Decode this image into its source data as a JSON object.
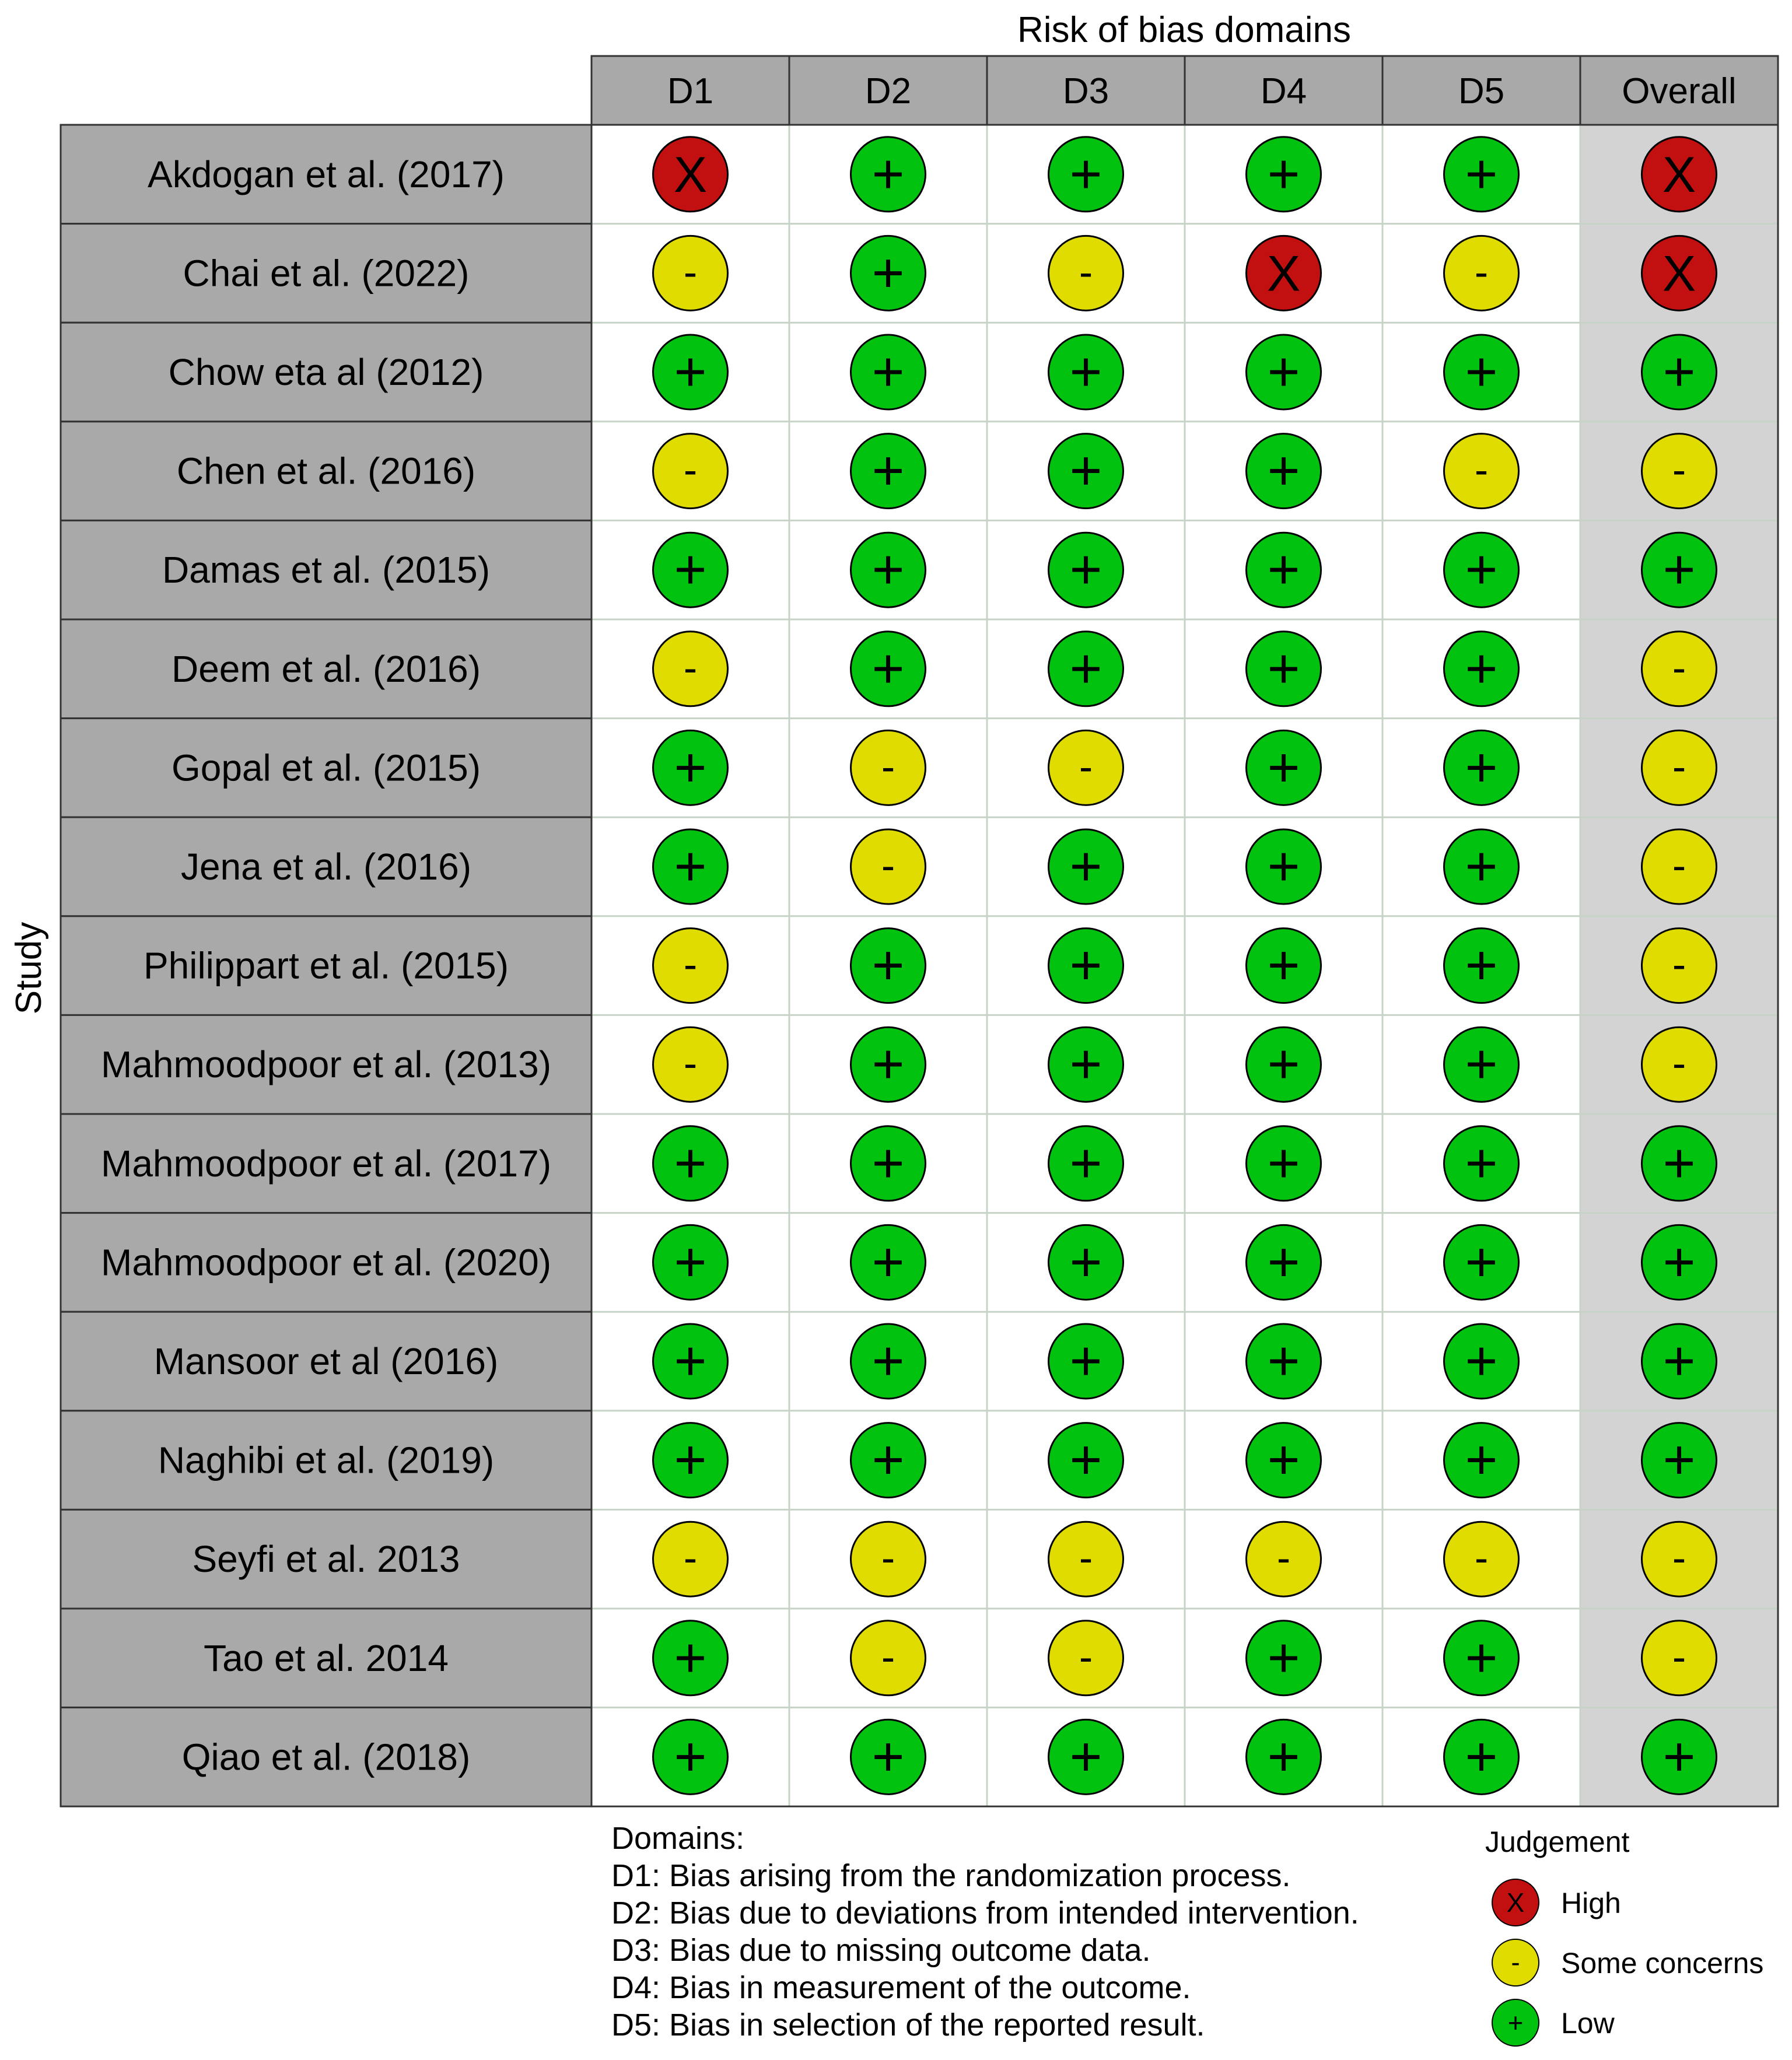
{
  "chart_data": {
    "type": "table",
    "title": "Risk of bias domains",
    "y_axis_label": "Study",
    "domains": [
      "D1",
      "D2",
      "D3",
      "D4",
      "D5",
      "Overall"
    ],
    "studies": [
      {
        "name": "Akdogan et al. (2017)",
        "judgements": [
          "high",
          "low",
          "low",
          "low",
          "low",
          "high"
        ]
      },
      {
        "name": "Chai et al. (2022)",
        "judgements": [
          "some",
          "low",
          "some",
          "high",
          "some",
          "high"
        ]
      },
      {
        "name": "Chow eta al (2012)",
        "judgements": [
          "low",
          "low",
          "low",
          "low",
          "low",
          "low"
        ]
      },
      {
        "name": "Chen et al. (2016)",
        "judgements": [
          "some",
          "low",
          "low",
          "low",
          "some",
          "some"
        ]
      },
      {
        "name": "Damas et al. (2015)",
        "judgements": [
          "low",
          "low",
          "low",
          "low",
          "low",
          "low"
        ]
      },
      {
        "name": "Deem et al. (2016)",
        "judgements": [
          "some",
          "low",
          "low",
          "low",
          "low",
          "some"
        ]
      },
      {
        "name": "Gopal et al. (2015)",
        "judgements": [
          "low",
          "some",
          "some",
          "low",
          "low",
          "some"
        ]
      },
      {
        "name": "Jena et al. (2016)",
        "judgements": [
          "low",
          "some",
          "low",
          "low",
          "low",
          "some"
        ]
      },
      {
        "name": "Philippart et al. (2015)",
        "judgements": [
          "some",
          "low",
          "low",
          "low",
          "low",
          "some"
        ]
      },
      {
        "name": "Mahmoodpoor et al. (2013)",
        "judgements": [
          "some",
          "low",
          "low",
          "low",
          "low",
          "some"
        ]
      },
      {
        "name": "Mahmoodpoor et al. (2017)",
        "judgements": [
          "low",
          "low",
          "low",
          "low",
          "low",
          "low"
        ]
      },
      {
        "name": "Mahmoodpoor et al. (2020)",
        "judgements": [
          "low",
          "low",
          "low",
          "low",
          "low",
          "low"
        ]
      },
      {
        "name": "Mansoor et al (2016)",
        "judgements": [
          "low",
          "low",
          "low",
          "low",
          "low",
          "low"
        ]
      },
      {
        "name": "Naghibi et al. (2019)",
        "judgements": [
          "low",
          "low",
          "low",
          "low",
          "low",
          "low"
        ]
      },
      {
        "name": "Seyfi et al. 2013",
        "judgements": [
          "some",
          "some",
          "some",
          "some",
          "some",
          "some"
        ]
      },
      {
        "name": "Tao et al. 2014",
        "judgements": [
          "low",
          "some",
          "some",
          "low",
          "low",
          "some"
        ]
      },
      {
        "name": "Qiao et al. (2018)",
        "judgements": [
          "low",
          "low",
          "low",
          "low",
          "low",
          "low"
        ]
      }
    ],
    "domain_legend": {
      "heading": "Domains:",
      "items": [
        "D1: Bias arising from the randomization process.",
        "D2: Bias due to deviations from intended intervention.",
        "D3: Bias due to missing outcome data.",
        "D4: Bias in measurement of the outcome.",
        "D5: Bias in selection of the reported result."
      ]
    },
    "judgement_legend": {
      "heading": "Judgement",
      "items": [
        {
          "key": "high",
          "label": "High"
        },
        {
          "key": "some",
          "label": "Some concerns"
        },
        {
          "key": "low",
          "label": "Low"
        }
      ]
    },
    "symbols": {
      "high": "X",
      "some": "-",
      "low": "+"
    },
    "colors": {
      "high": "#c20f0f",
      "some": "#e0dc00",
      "low": "#02c210",
      "header_bg": "#a9a9a9",
      "overall_bg": "#d3d3d3",
      "grid": "#c7d3c7"
    }
  }
}
